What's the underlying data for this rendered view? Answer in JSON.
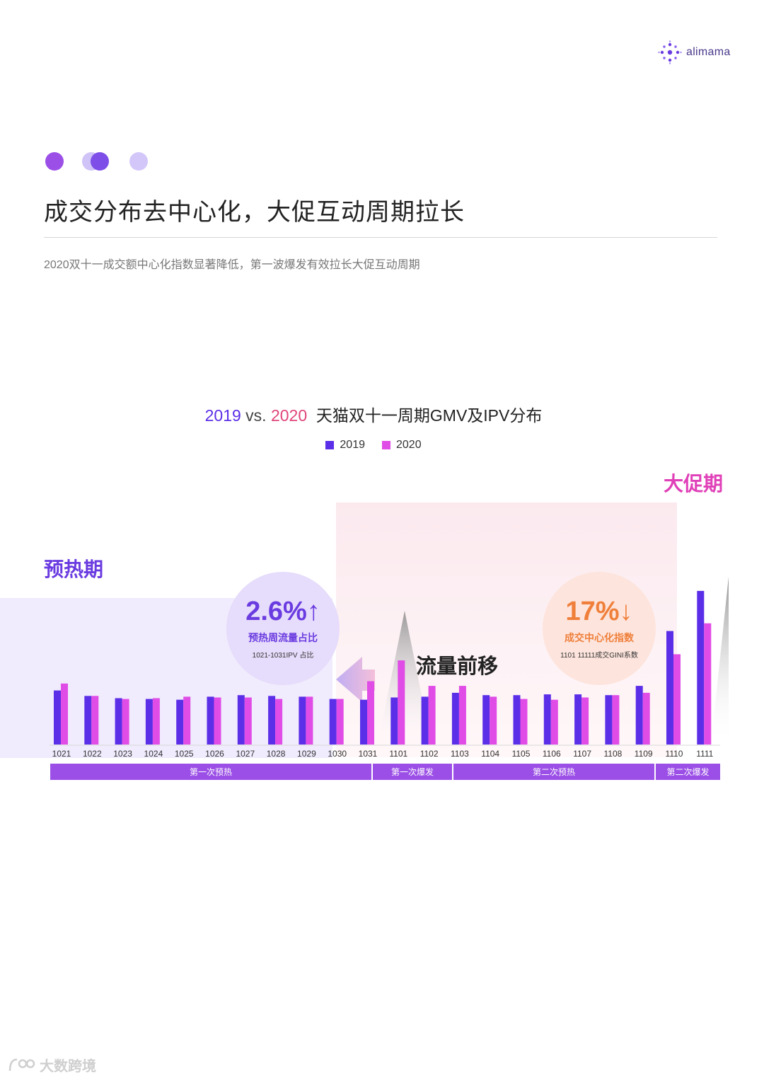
{
  "brand": {
    "name": "alimama",
    "icon": "alimama-logo-icon"
  },
  "decoration": {
    "dot_colors": [
      "#9b4fe6",
      "#cfc3f7",
      "#7d4fe8",
      "#d3c7fa"
    ]
  },
  "page": {
    "title": "成交分布去中心化，大促互动周期拉长",
    "subtitle": "2020双十一成交额中心化指数显著降低，第一波爆发有效拉长大促互动周期"
  },
  "chart_title": {
    "year1": "2019",
    "vs": " vs. ",
    "year2": "2020",
    "rest": "  天猫双十一周期GMV及IPV分布"
  },
  "labels": {
    "preheat_period": "预热期",
    "promo_period": "大促期",
    "flow_shift": "流量前移"
  },
  "callouts": {
    "left": {
      "value": "2.6%",
      "arrow": "↑",
      "label": "预热周流量占比",
      "note": "1021-1031IPV 占比"
    },
    "right": {
      "value": "17%",
      "arrow": "↓",
      "label": "成交中心化指数",
      "note": "1101  11111成交GINI系数"
    }
  },
  "phases": [
    "第一次预热",
    "第一次爆发",
    "第二次预热",
    "第二次爆发"
  ],
  "watermark": "大数跨境",
  "colors": {
    "series2019": "#5b2ee8",
    "series2020": "#e04ce6",
    "accent_purple": "#6a3be0",
    "accent_orange": "#ef7f3a",
    "accent_pink": "#e040b8",
    "phase_bar": "#9b4fe6"
  },
  "chart_data": {
    "type": "bar",
    "categories": [
      "1021",
      "1022",
      "1023",
      "1024",
      "1025",
      "1026",
      "1027",
      "1028",
      "1029",
      "1030",
      "1031",
      "1101",
      "1102",
      "1103",
      "1104",
      "1105",
      "1106",
      "1107",
      "1108",
      "1109",
      "1110",
      "1111"
    ],
    "series": [
      {
        "name": "2019",
        "values": [
          70,
          63,
          60,
          59,
          58,
          62,
          64,
          63,
          62,
          59,
          58,
          61,
          62,
          67,
          64,
          64,
          65,
          65,
          64,
          76,
          147,
          199
        ]
      },
      {
        "name": "2020",
        "values": [
          79,
          63,
          59,
          60,
          62,
          61,
          61,
          59,
          62,
          59,
          82,
          109,
          76,
          76,
          62,
          59,
          58,
          61,
          64,
          67,
          117,
          157
        ]
      }
    ],
    "ylim": [
      0,
      220
    ],
    "legend": "top-center",
    "grid": false
  }
}
